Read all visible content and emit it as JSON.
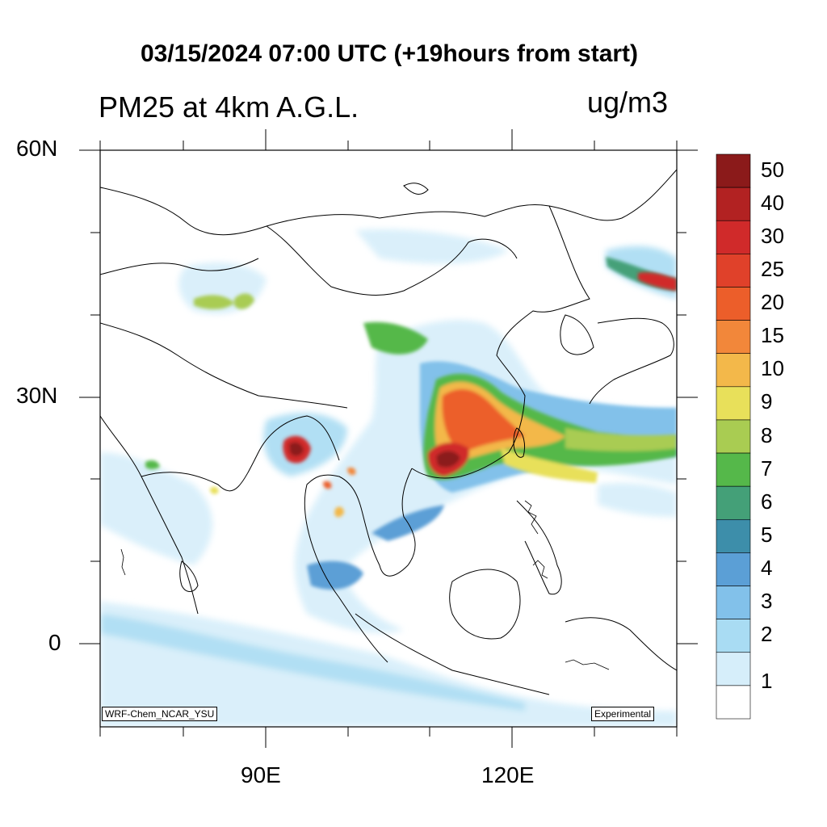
{
  "title": "03/15/2024 07:00 UTC (+19hours from start)",
  "variable_label": "PM25 at 4km A.G.L.",
  "units_label": "ug/m3",
  "model_tag": "WRF-Chem_NCAR_YSU",
  "status_tag": "Experimental",
  "lat_labels": [
    "60N",
    "30N",
    "0"
  ],
  "lon_labels": [
    "90E",
    "120E"
  ],
  "colorbar": {
    "labels": [
      "50",
      "40",
      "30",
      "25",
      "20",
      "15",
      "10",
      "9",
      "8",
      "7",
      "6",
      "5",
      "4",
      "3",
      "2",
      "1"
    ],
    "colors": [
      "#8b1a1a",
      "#b22222",
      "#d02a2a",
      "#e0412a",
      "#ec5e2a",
      "#f2873a",
      "#f3b84a",
      "#e8e05a",
      "#a9cc52",
      "#55b84a",
      "#44a078",
      "#3d8eaa",
      "#5b9fd6",
      "#82c1ea",
      "#a9dcf3",
      "#d6eefa",
      "#ffffff"
    ]
  }
}
